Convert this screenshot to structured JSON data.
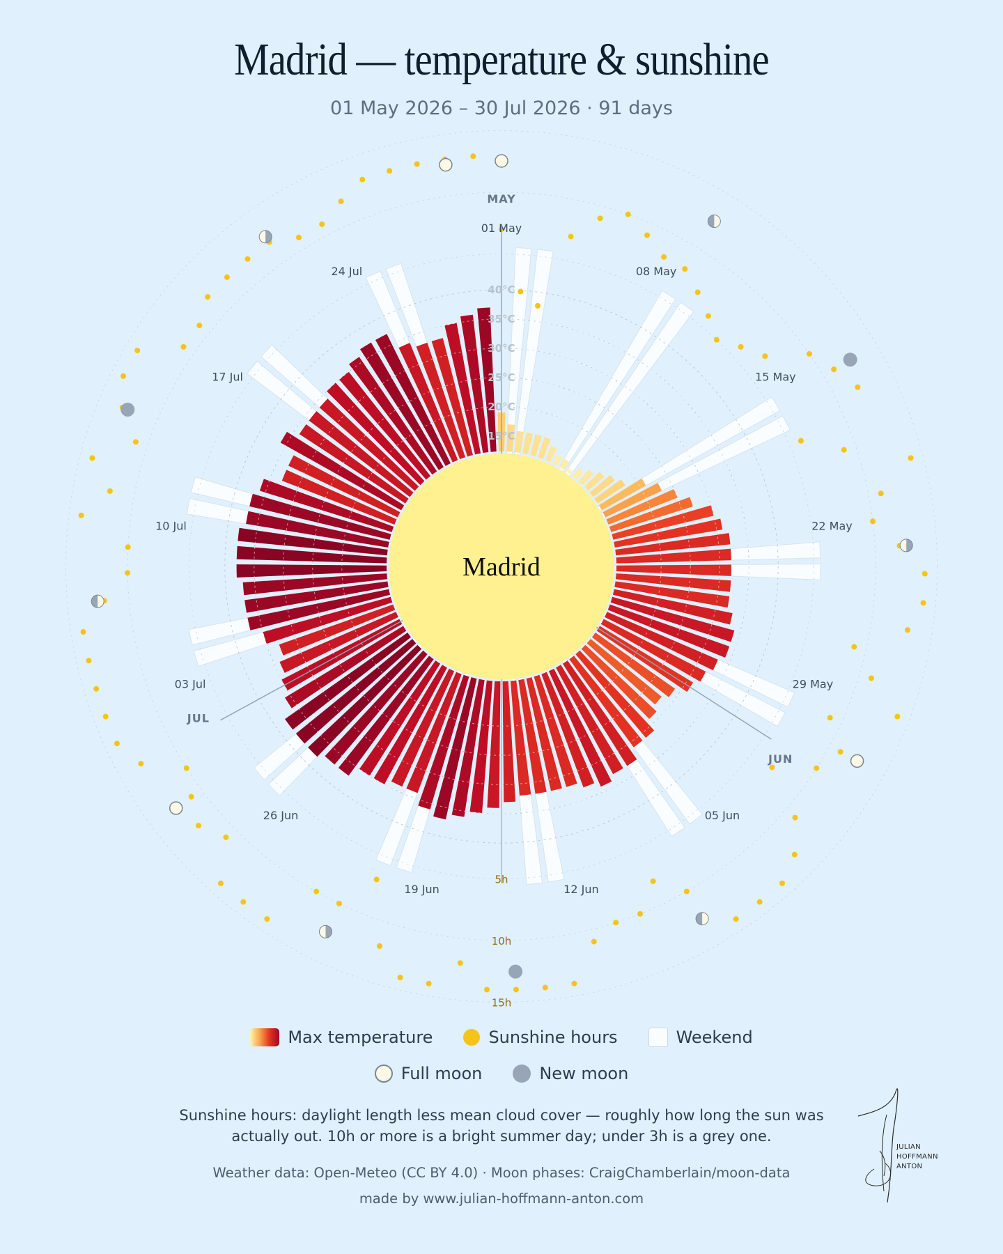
{
  "header": {
    "title": "Madrid — temperature & sunshine",
    "subtitle": "01 May 2026 – 30 Jul 2026 · 91 days"
  },
  "chart_data": {
    "type": "radial-bar",
    "center_label": "Madrid",
    "start_date": "01 May 2026",
    "days": 91,
    "temp_ticks": [
      "15°C",
      "20°C",
      "25°C",
      "30°C",
      "35°C",
      "40°C"
    ],
    "sun_ticks": [
      "5h",
      "10h",
      "15h"
    ],
    "month_labels": [
      {
        "label": "MAY",
        "day_index": 0
      },
      {
        "label": "JUN",
        "day_index": 31
      },
      {
        "label": "JUL",
        "day_index": 61
      }
    ],
    "date_labels": [
      {
        "label": "01 May",
        "day_index": 0
      },
      {
        "label": "08 May",
        "day_index": 7
      },
      {
        "label": "15 May",
        "day_index": 14
      },
      {
        "label": "22 May",
        "day_index": 21
      },
      {
        "label": "29 May",
        "day_index": 28
      },
      {
        "label": "05 Jun",
        "day_index": 35
      },
      {
        "label": "12 Jun",
        "day_index": 42
      },
      {
        "label": "19 Jun",
        "day_index": 49
      },
      {
        "label": "26 Jun",
        "day_index": 56
      },
      {
        "label": "03 Jul",
        "day_index": 63
      },
      {
        "label": "10 Jul",
        "day_index": 70
      },
      {
        "label": "17 Jul",
        "day_index": 77
      },
      {
        "label": "24 Jul",
        "day_index": 84
      }
    ],
    "weekend_day_indices": [
      1,
      2,
      8,
      9,
      15,
      16,
      22,
      23,
      29,
      30,
      36,
      37,
      43,
      44,
      50,
      51,
      57,
      58,
      64,
      65,
      71,
      72,
      78,
      79,
      85,
      86
    ],
    "max_temp_c": [
      19,
      17,
      16,
      16,
      16,
      16,
      15,
      14,
      14,
      13,
      14,
      15,
      16,
      17,
      18,
      21,
      23,
      25,
      27,
      30,
      31,
      32,
      32,
      32,
      32,
      32,
      33,
      34,
      34,
      33,
      32,
      31,
      29,
      28,
      29,
      31,
      31,
      33,
      33,
      34,
      33,
      32,
      32,
      32,
      32,
      33,
      34,
      35,
      36,
      37,
      36,
      34,
      34,
      35,
      35,
      37,
      37,
      38,
      38,
      38,
      36,
      35,
      34,
      33,
      35,
      37,
      37,
      37,
      38,
      38,
      38,
      37,
      37,
      36,
      33,
      33,
      36,
      34,
      34,
      34,
      35,
      35,
      36,
      37,
      37,
      34,
      33,
      33,
      35,
      36,
      37
    ],
    "sunshine_h": [
      7,
      2,
      1,
      7,
      9,
      10,
      9,
      8,
      8,
      7,
      6,
      5,
      6,
      7,
      10,
      11,
      12,
      6,
      9,
      14,
      11,
      10,
      12,
      14,
      14,
      13,
      9,
      11,
      14,
      9,
      11,
      10,
      7,
      11,
      13,
      14,
      14,
      14,
      10,
      8,
      10,
      10,
      11,
      14,
      14,
      14,
      14,
      12,
      14,
      14,
      12,
      7,
      10,
      10,
      14,
      14,
      14,
      11,
      12,
      11,
      10,
      13,
      14,
      14,
      14,
      14,
      14,
      12,
      10,
      10,
      14,
      12,
      14,
      11,
      13,
      14,
      14,
      11,
      11,
      12,
      12,
      12,
      12,
      11,
      11,
      12,
      13,
      13,
      13,
      13,
      13
    ],
    "full_moon_day_indices": [
      0,
      30,
      59,
      89
    ],
    "new_moon_day_indices": [
      15,
      45,
      74
    ],
    "first_quarter_day_indices": [
      8,
      38,
      67
    ],
    "last_quarter_day_indices": [
      22,
      52,
      82
    ],
    "grid": true
  },
  "legend": {
    "max_temp": "Max temperature",
    "sunshine": "Sunshine hours",
    "weekend": "Weekend",
    "full_moon": "Full moon",
    "new_moon": "New moon"
  },
  "footer": {
    "note_line1": "Sunshine hours: daylight length less mean cloud cover — roughly how long the sun was",
    "note_line2": "actually out. 10h or more is a bright summer day; under 3h is a grey one.",
    "source": "Weather data: Open-Meteo (CC BY 4.0) · Moon phases: CraigChamberlain/moon-data",
    "made_by": "made by www.julian-hoffmann-anton.com"
  },
  "signature": {
    "line1": "JULIAN",
    "line2": "HOFFMANN",
    "line3": "ANTON"
  },
  "colors": {
    "background": "#e0f0fc",
    "hub": "#fff190",
    "sunshine": "#f5c41a",
    "weekend": "#fafdff",
    "new_moon": "#97a5b7",
    "full_moon": "#fbf8e6"
  }
}
